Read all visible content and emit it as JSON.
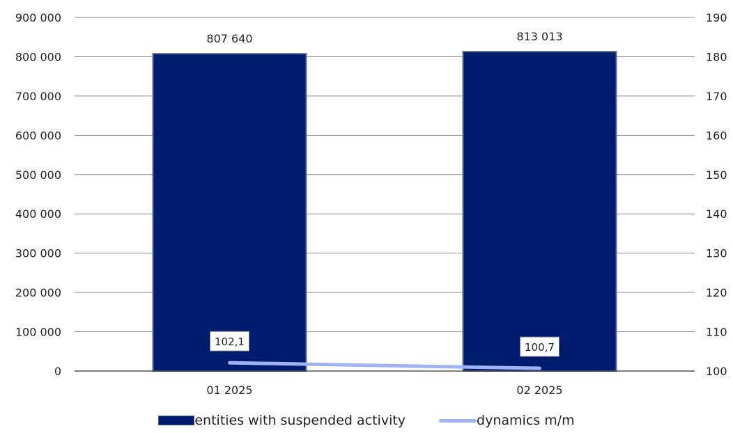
{
  "chart_data": {
    "type": "bar",
    "categories": [
      "01 2025",
      "02 2025"
    ],
    "series": [
      {
        "name": "entities with suspended activity",
        "kind": "bar",
        "axis": "left",
        "values": [
          807640,
          813013
        ],
        "labels": [
          "807 640",
          "813 013"
        ],
        "color": "#001c6e"
      },
      {
        "name": "dynamics m/m",
        "kind": "line",
        "axis": "right",
        "values": [
          102.1,
          100.7
        ],
        "labels": [
          "102,1",
          "100,7"
        ],
        "color": "#9fb4f4"
      }
    ],
    "y_left": {
      "lim": [
        0,
        900000
      ],
      "ticks": [
        0,
        100000,
        200000,
        300000,
        400000,
        500000,
        600000,
        700000,
        800000,
        900000
      ],
      "tick_labels": [
        "0",
        "100 000",
        "200 000",
        "300 000",
        "400 000",
        "500 000",
        "600 000",
        "700 000",
        "800 000",
        "900 000"
      ]
    },
    "y_right": {
      "lim": [
        100,
        190
      ],
      "ticks": [
        100,
        110,
        120,
        130,
        140,
        150,
        160,
        170,
        180,
        190
      ],
      "tick_labels": [
        "100",
        "110",
        "120",
        "130",
        "140",
        "150",
        "160",
        "170",
        "180",
        "190"
      ]
    },
    "grid": true,
    "legend_position": "bottom"
  }
}
